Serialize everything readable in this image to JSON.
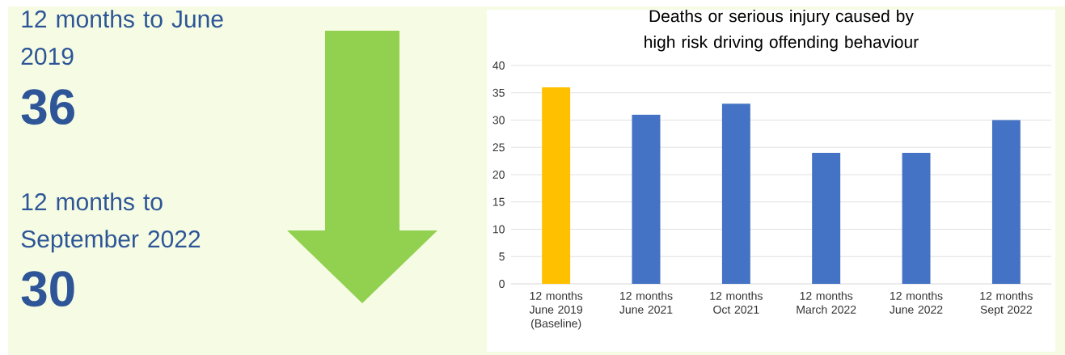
{
  "chart_data": [
    {
      "type": "other",
      "annotations": [
        "12 months to June 2019",
        "36",
        "12 months to September 2022",
        "30"
      ]
    },
    {
      "type": "bar",
      "title": "Deaths or serious injury caused by high risk driving offending behaviour",
      "categories": [
        "12 months June 2019 (Baseline)",
        "12 months June 2021",
        "12 months Oct 2021",
        "12 months March 2022",
        "12 months June 2022",
        "12 months Sept 2022"
      ],
      "values": [
        36,
        31,
        33,
        24,
        24,
        30
      ],
      "colors": [
        "#ffc000",
        "#4472c4",
        "#4472c4",
        "#4472c4",
        "#4472c4",
        "#4472c4"
      ],
      "ylim": [
        0,
        40
      ],
      "yticks": [
        0,
        5,
        10,
        15,
        20,
        25,
        30,
        35,
        40
      ],
      "grid": "y"
    }
  ]
}
